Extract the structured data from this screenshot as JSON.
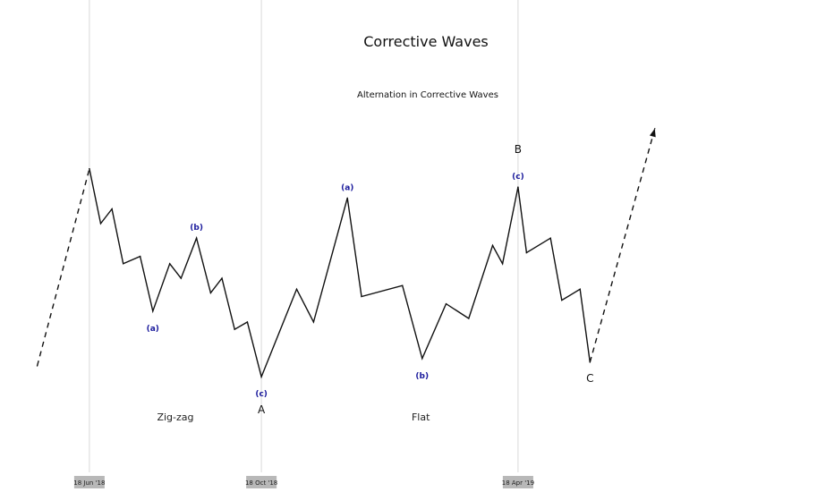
{
  "chart_data": {
    "type": "line",
    "title": "Corrective Waves",
    "subtitle": "Alternation in Corrective Waves",
    "xlabel": "",
    "ylabel": "",
    "grid": "vertical lines at labeled dates",
    "legend": "none",
    "x_ticks": [
      {
        "date": "2018-06-18",
        "label": "18 Jun '18"
      },
      {
        "date": "2018-10-18",
        "label": "18 Oct '18"
      },
      {
        "date": "2019-04-18",
        "label": "18 Apr '19"
      }
    ],
    "x_range": [
      "2018-05-11",
      "2019-09-18"
    ],
    "y_range": [
      0,
      100
    ],
    "series": [
      {
        "style": "dashed",
        "points": [
          [
            "2018-05-12",
            25
          ],
          [
            "2018-06-18",
            79
          ]
        ]
      },
      {
        "style": "solid",
        "points": [
          [
            "2018-06-18",
            79
          ],
          [
            "2018-06-26",
            64
          ],
          [
            "2018-07-04",
            68
          ],
          [
            "2018-07-12",
            53
          ],
          [
            "2018-07-24",
            55
          ],
          [
            "2018-08-02",
            40
          ],
          [
            "2018-08-14",
            53
          ],
          [
            "2018-08-22",
            49
          ],
          [
            "2018-09-02",
            60
          ],
          [
            "2018-09-12",
            45
          ],
          [
            "2018-09-20",
            49
          ],
          [
            "2018-09-29",
            35
          ],
          [
            "2018-10-08",
            37
          ],
          [
            "2018-10-18",
            22
          ],
          [
            "2018-11-12",
            46
          ],
          [
            "2018-11-24",
            37
          ],
          [
            "2018-12-18",
            71
          ],
          [
            "2018-12-28",
            44
          ],
          [
            "2019-01-26",
            47
          ],
          [
            "2019-02-09",
            27
          ],
          [
            "2019-02-26",
            42
          ],
          [
            "2019-03-14",
            38
          ],
          [
            "2019-03-31",
            58
          ],
          [
            "2019-04-07",
            53
          ],
          [
            "2019-04-18",
            74
          ],
          [
            "2019-04-24",
            56
          ],
          [
            "2019-05-11",
            60
          ],
          [
            "2019-05-19",
            43
          ],
          [
            "2019-06-01",
            46
          ],
          [
            "2019-06-08",
            26
          ]
        ]
      },
      {
        "style": "dashed",
        "points": [
          [
            "2019-06-08",
            26
          ],
          [
            "2019-07-24",
            90
          ]
        ]
      }
    ],
    "annotations": [
      {
        "text": "(a)",
        "date": "2018-08-02",
        "y": 40,
        "position": "below",
        "kind": "minor"
      },
      {
        "text": "(b)",
        "date": "2018-09-02",
        "y": 60,
        "position": "above",
        "kind": "minor"
      },
      {
        "text": "(c)",
        "date": "2018-10-18",
        "y": 22,
        "position": "below",
        "kind": "minor"
      },
      {
        "text": "A",
        "date": "2018-10-18",
        "y": 22,
        "position": "below",
        "kind": "major"
      },
      {
        "text": "(a)",
        "date": "2018-12-18",
        "y": 71,
        "position": "above",
        "kind": "minor"
      },
      {
        "text": "(b)",
        "date": "2019-02-09",
        "y": 27,
        "position": "below",
        "kind": "minor"
      },
      {
        "text": "(c)",
        "date": "2019-04-18",
        "y": 74,
        "position": "above",
        "kind": "minor"
      },
      {
        "text": "B",
        "date": "2019-04-18",
        "y": 74,
        "position": "above",
        "kind": "major"
      },
      {
        "text": "C",
        "date": "2019-06-08",
        "y": 26,
        "position": "below",
        "kind": "major"
      },
      {
        "text": "Zig-zag",
        "date": "2018-08-18",
        "y": 11,
        "position": "center",
        "kind": "pattern"
      },
      {
        "text": "Flat",
        "date": "2019-02-08",
        "y": 11,
        "position": "center",
        "kind": "pattern"
      }
    ],
    "colors": {
      "line": "#111111",
      "wave_label": "#1a1a9c",
      "gridline": "#d9d9d9",
      "tick_box": "#b8b8b8"
    }
  }
}
